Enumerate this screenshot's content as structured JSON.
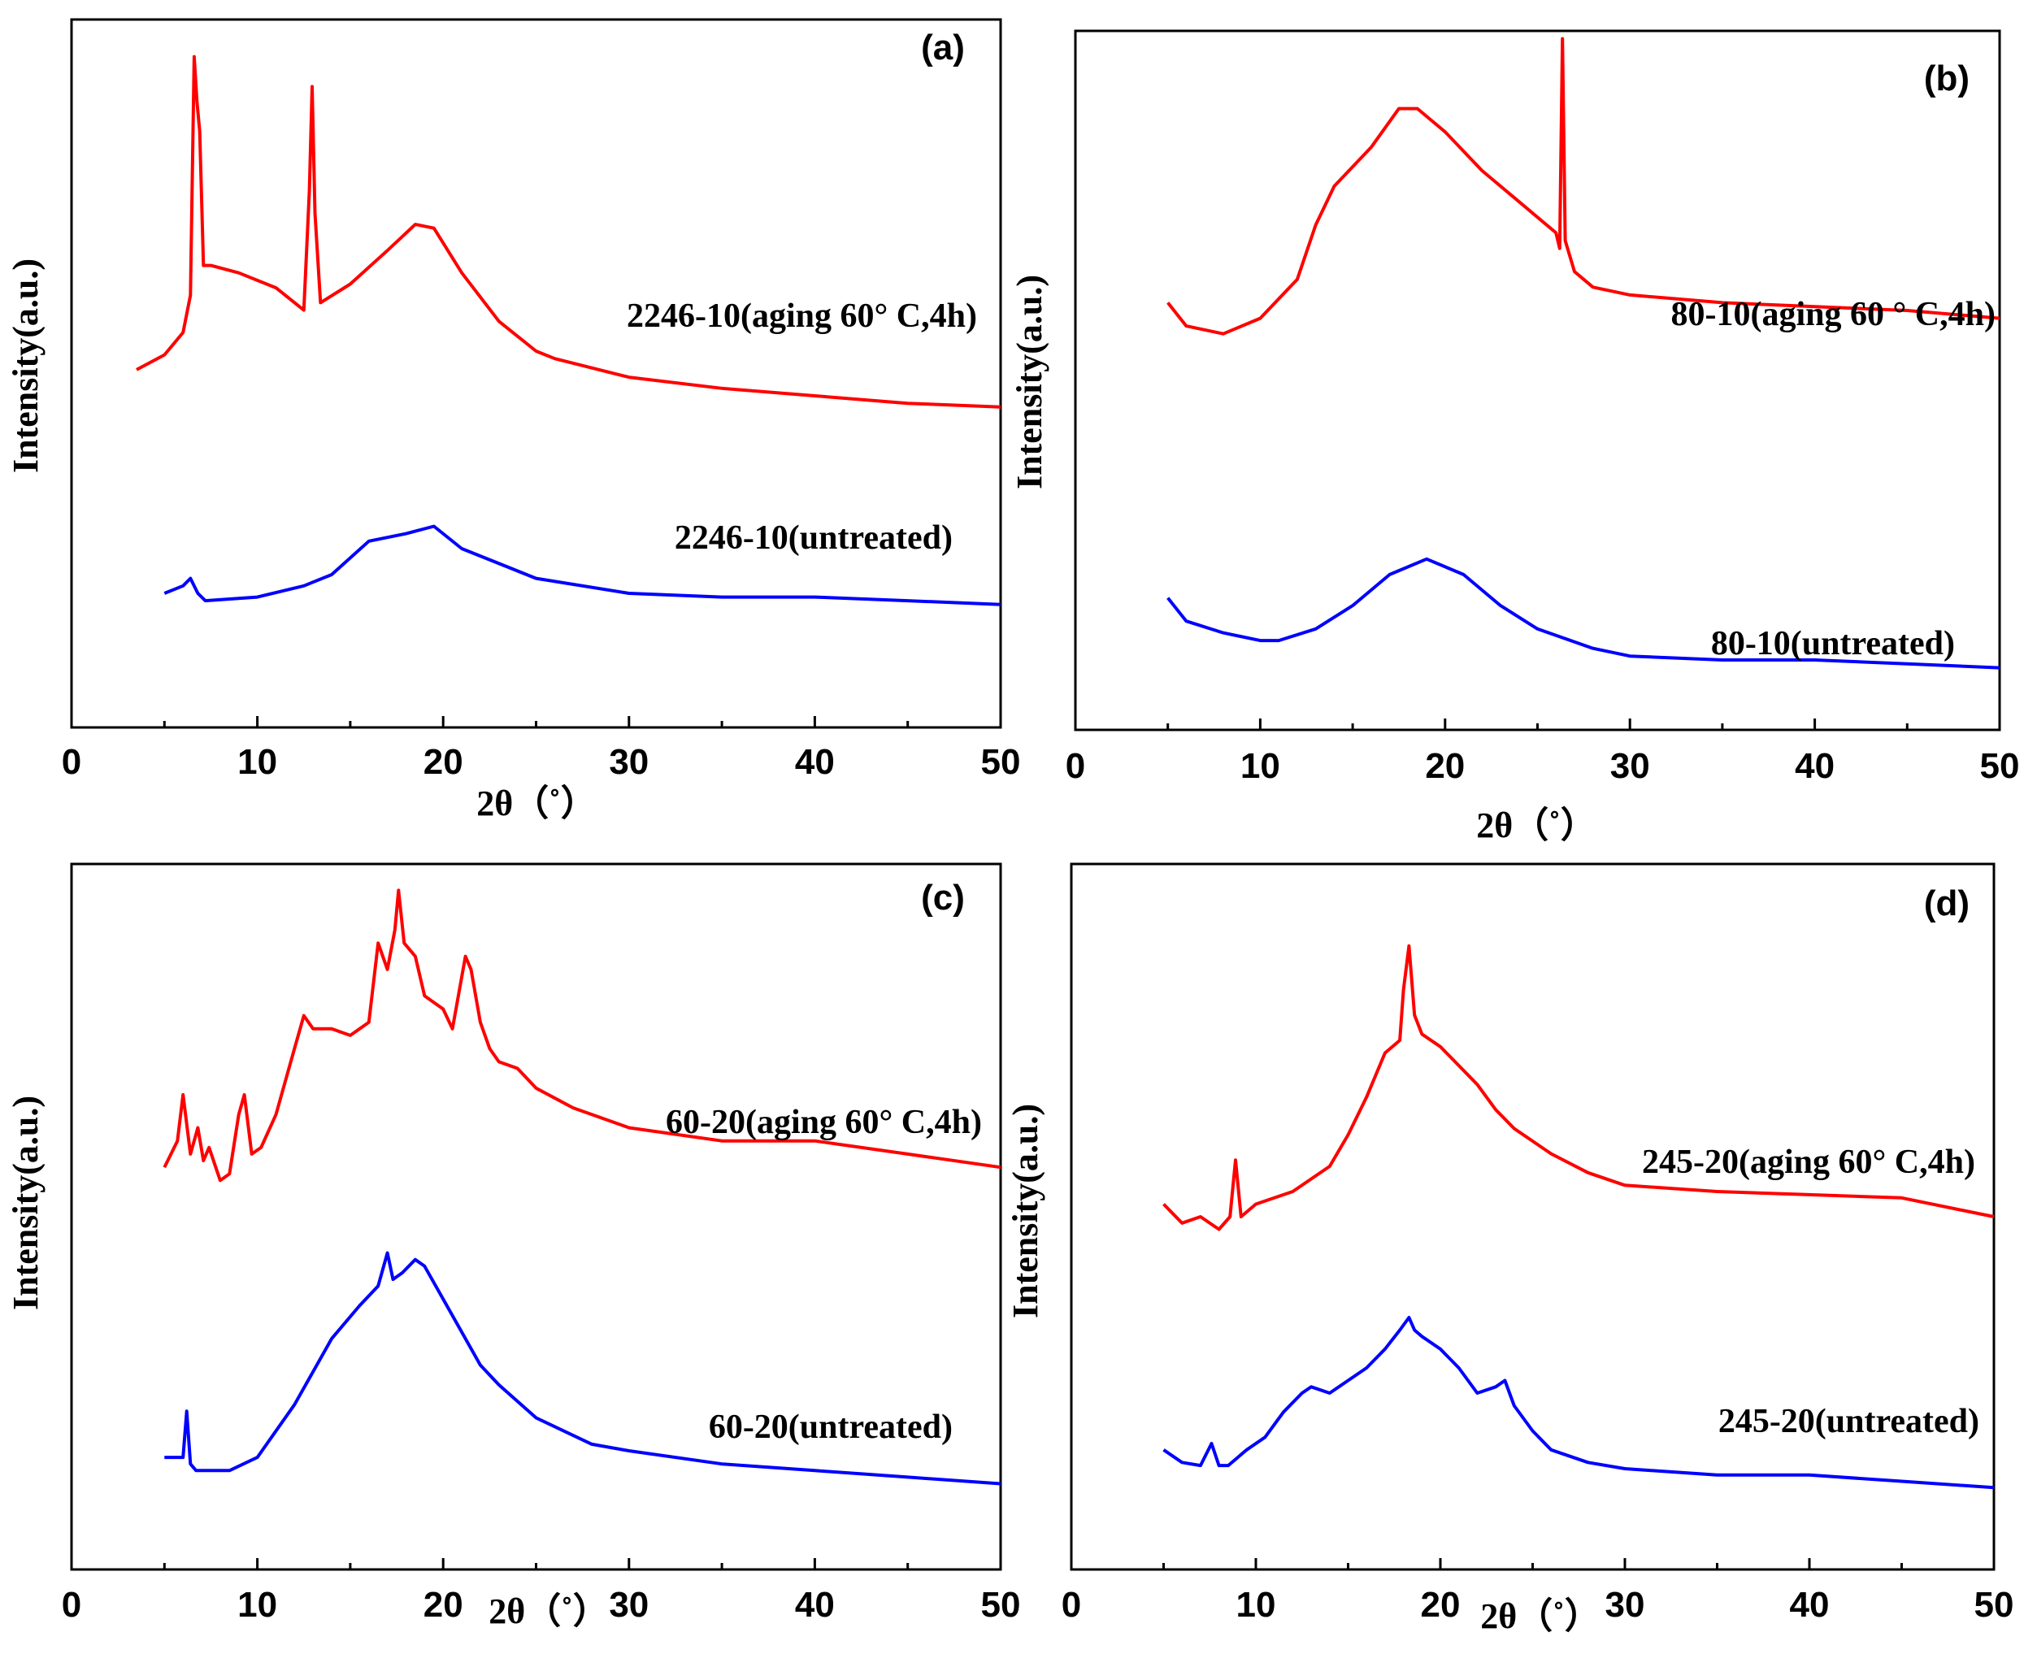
{
  "chart_data": [
    {
      "panel": "(a)",
      "type": "line",
      "xlabel": "2θ（˚）",
      "ylabel": "Intensity(a.u.)",
      "xlim": [
        0,
        50
      ],
      "xticks": [
        "0",
        "10",
        "20",
        "30",
        "40",
        "50"
      ],
      "series": [
        {
          "name": "2246-10(aging 60° C,4h)",
          "color": "#ff0000",
          "x": [
            3.5,
            5,
            6,
            6.4,
            6.6,
            6.75,
            6.9,
            7.1,
            7.5,
            9,
            11,
            12.5,
            12.8,
            12.95,
            13.1,
            13.4,
            15,
            17,
            18.5,
            19.5,
            21,
            23,
            25,
            26,
            30,
            35,
            40,
            45,
            50
          ],
          "y": [
            8.0,
            10.0,
            13.0,
            18.0,
            50.0,
            44.0,
            40.0,
            22.0,
            22.0,
            21.0,
            19.0,
            16.0,
            32.0,
            46.0,
            29.0,
            17.0,
            19.5,
            24.0,
            27.5,
            27.0,
            21.0,
            14.5,
            10.5,
            9.5,
            7.0,
            5.5,
            4.5,
            3.5,
            3.0
          ]
        },
        {
          "name": "2246-10(untreated)",
          "color": "#0000ff",
          "x": [
            5,
            6,
            6.4,
            6.8,
            7.2,
            10,
            12.5,
            13,
            14,
            16,
            18,
            19.5,
            21,
            25,
            30,
            35,
            40,
            45,
            50
          ],
          "y": [
            -22.0,
            -21.0,
            -20.0,
            -22.0,
            -23.0,
            -22.5,
            -21.0,
            -20.5,
            -19.5,
            -15.0,
            -14.0,
            -13.0,
            -16.0,
            -20.0,
            -22.0,
            -22.5,
            -22.5,
            -23.0,
            -23.5
          ]
        }
      ]
    },
    {
      "panel": "(b)",
      "type": "line",
      "xlabel": "2θ（˚）",
      "ylabel": "Intensity(a.u.)",
      "xlim": [
        0,
        50
      ],
      "xticks": [
        "0",
        "10",
        "20",
        "30",
        "40",
        "50"
      ],
      "series": [
        {
          "name": "80-10(aging 60 ° C,4h)",
          "color": "#ff0000",
          "x": [
            5,
            6,
            8,
            10,
            12,
            13,
            14,
            16,
            17.5,
            18.5,
            20,
            22,
            24,
            26,
            26.2,
            26.35,
            26.5,
            27,
            28,
            30,
            35,
            40,
            45,
            50
          ],
          "y": [
            10.0,
            7.0,
            6.0,
            8.0,
            13.0,
            20.0,
            25.0,
            30.0,
            35.0,
            35.0,
            32.0,
            27.0,
            23.0,
            19.0,
            17.0,
            44.0,
            18.0,
            14.0,
            12.0,
            11.0,
            10.0,
            9.5,
            9.0,
            8.0
          ]
        },
        {
          "name": "80-10(untreated)",
          "color": "#0000ff",
          "x": [
            5,
            6,
            8,
            10,
            11,
            13,
            15,
            17,
            19,
            21,
            23,
            25,
            28,
            30,
            35,
            40,
            45,
            50
          ],
          "y": [
            -28.0,
            -31.0,
            -32.5,
            -33.5,
            -33.5,
            -32.0,
            -29.0,
            -25.0,
            -23.0,
            -25.0,
            -29.0,
            -32.0,
            -34.5,
            -35.5,
            -36.0,
            -36.0,
            -36.5,
            -37.0
          ]
        }
      ]
    },
    {
      "panel": "(c)",
      "type": "line",
      "xlabel": "2θ（˚）",
      "ylabel": "Intensity(a.u.)",
      "xlim": [
        0,
        50
      ],
      "xticks": [
        "0",
        "10",
        "20",
        "30",
        "40",
        "50"
      ],
      "series": [
        {
          "name": "60-20(aging 60° C,4h)",
          "color": "#ff0000",
          "x": [
            5,
            5.7,
            6,
            6.4,
            6.8,
            7.1,
            7.4,
            8,
            8.5,
            9,
            9.3,
            9.7,
            10.2,
            11,
            12,
            12.5,
            13,
            14,
            15,
            16,
            16.5,
            17,
            17.4,
            17.6,
            17.9,
            18.5,
            19,
            20,
            20.5,
            21.2,
            21.5,
            22,
            22.5,
            23,
            24,
            25,
            27,
            30,
            35,
            40,
            45,
            50
          ],
          "y": [
            6.0,
            10.0,
            17.0,
            8.0,
            12.0,
            7.0,
            9.0,
            4.0,
            5.0,
            14.0,
            17.0,
            8.0,
            9.0,
            14.0,
            24.0,
            29.0,
            27.0,
            27.0,
            26.0,
            28.0,
            40.0,
            36.0,
            42.0,
            48.0,
            40.0,
            38.0,
            32.0,
            30.0,
            27.0,
            38.0,
            36.0,
            28.0,
            24.0,
            22.0,
            21.0,
            18.0,
            15.0,
            12.0,
            10.0,
            10.0,
            8.0,
            6.0
          ]
        },
        {
          "name": "60-20(untreated)",
          "color": "#0000ff",
          "x": [
            5,
            6,
            6.2,
            6.4,
            6.7,
            7.5,
            8.5,
            10,
            12,
            14,
            15.5,
            16.5,
            17,
            17.3,
            17.8,
            18.5,
            19,
            20,
            21,
            22,
            23,
            25,
            28,
            30,
            35,
            40,
            45,
            50
          ],
          "y": [
            -38.0,
            -38.0,
            -31.0,
            -39.0,
            -40.0,
            -40.0,
            -40.0,
            -38.0,
            -30.0,
            -20.0,
            -15.0,
            -12.0,
            -7.0,
            -11.0,
            -10.0,
            -8.0,
            -9.0,
            -14.0,
            -19.0,
            -24.0,
            -27.0,
            -32.0,
            -36.0,
            -37.0,
            -39.0,
            -40.0,
            -41.0,
            -42.0
          ]
        }
      ]
    },
    {
      "panel": "(d)",
      "type": "line",
      "xlabel": "2θ（˚）",
      "ylabel": "Intensity(a.u.)",
      "xlim": [
        0,
        50
      ],
      "xticks": [
        "0",
        "10",
        "20",
        "30",
        "40",
        "50"
      ],
      "series": [
        {
          "name": "245-20(aging 60° C,4h)",
          "color": "#ff0000",
          "x": [
            5,
            6,
            7,
            8,
            8.6,
            8.9,
            9.2,
            10,
            12,
            14,
            15,
            16,
            17,
            17.8,
            18,
            18.3,
            18.6,
            19,
            20,
            22,
            23,
            24,
            26,
            28,
            30,
            35,
            40,
            45,
            50
          ],
          "y": [
            8.0,
            5.0,
            6.0,
            4.0,
            6.0,
            15.0,
            6.0,
            8.0,
            10.0,
            14.0,
            19.0,
            25.0,
            32.0,
            34.0,
            42.0,
            49.0,
            38.0,
            35.0,
            33.0,
            27.0,
            23.0,
            20.0,
            16.0,
            13.0,
            11.0,
            10.0,
            9.5,
            9.0,
            6.0
          ]
        },
        {
          "name": "245-20(untreated)",
          "color": "#0000ff",
          "x": [
            5,
            6,
            7,
            7.6,
            8,
            8.5,
            9.5,
            10.5,
            11.5,
            12.5,
            13,
            14,
            15,
            16,
            17,
            17.8,
            18.3,
            18.6,
            19,
            20,
            21,
            22,
            23,
            23.5,
            24,
            25,
            26,
            28,
            30,
            35,
            40,
            45,
            50
          ],
          "y": [
            -31.0,
            -33.0,
            -33.5,
            -30.0,
            -33.5,
            -33.5,
            -31.0,
            -29.0,
            -25.0,
            -22.0,
            -21.0,
            -22.0,
            -20.0,
            -18.0,
            -15.0,
            -12.0,
            -10.0,
            -12.0,
            -13.0,
            -15.0,
            -18.0,
            -22.0,
            -21.0,
            -20.0,
            -24.0,
            -28.0,
            -31.0,
            -33.0,
            -34.0,
            -35.0,
            -35.0,
            -36.0,
            -37.0
          ]
        }
      ]
    }
  ]
}
